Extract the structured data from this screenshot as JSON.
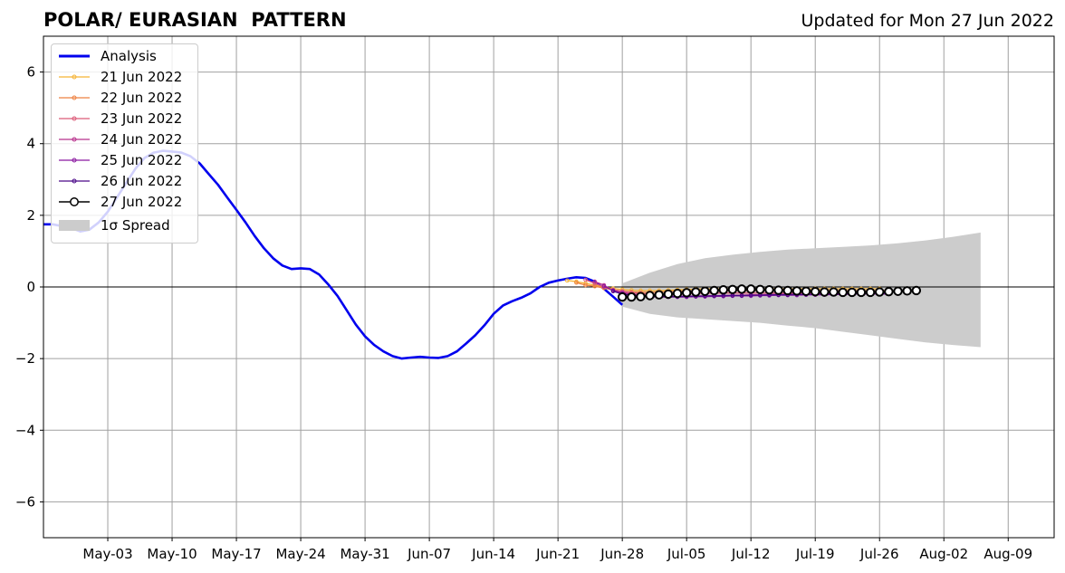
{
  "header": {
    "title": "POLAR/ EURASIAN  PATTERN",
    "updated": "Updated for Mon 27 Jun 2022"
  },
  "legend": {
    "items": [
      {
        "label": "Analysis",
        "color": "#0000ee",
        "kind": "thick-line"
      },
      {
        "label": "21 Jun 2022",
        "color": "#f5b335",
        "kind": "line-dot"
      },
      {
        "label": "22 Jun 2022",
        "color": "#ee8040",
        "kind": "line-dot"
      },
      {
        "label": "23 Jun 2022",
        "color": "#dc5a78",
        "kind": "line-dot"
      },
      {
        "label": "24 Jun 2022",
        "color": "#b8308c",
        "kind": "line-dot"
      },
      {
        "label": "25 Jun 2022",
        "color": "#8a18a0",
        "kind": "line-dot"
      },
      {
        "label": "26 Jun 2022",
        "color": "#4a0888",
        "kind": "line-dot"
      },
      {
        "label": "27 Jun 2022",
        "color": "#000000",
        "kind": "line-circle"
      },
      {
        "label": "1σ Spread",
        "color": "#cccccc",
        "kind": "patch"
      }
    ]
  },
  "chart_data": {
    "type": "line",
    "xlabel": "",
    "ylabel": "",
    "x_range": [
      "2022-04-26",
      "2022-08-14"
    ],
    "ylim": [
      -7,
      7
    ],
    "yticks": [
      -6,
      -4,
      -2,
      0,
      2,
      4,
      6
    ],
    "ytick_labels": [
      "−6",
      "−4",
      "−2",
      "0",
      "2",
      "4",
      "6"
    ],
    "xticks": [
      {
        "date": "2022-05-03",
        "label": "May-03"
      },
      {
        "date": "2022-05-10",
        "label": "May-10"
      },
      {
        "date": "2022-05-17",
        "label": "May-17"
      },
      {
        "date": "2022-05-24",
        "label": "May-24"
      },
      {
        "date": "2022-05-31",
        "label": "May-31"
      },
      {
        "date": "2022-06-07",
        "label": "Jun-07"
      },
      {
        "date": "2022-06-14",
        "label": "Jun-14"
      },
      {
        "date": "2022-06-21",
        "label": "Jun-21"
      },
      {
        "date": "2022-06-28",
        "label": "Jun-28"
      },
      {
        "date": "2022-07-05",
        "label": "Jul-05"
      },
      {
        "date": "2022-07-12",
        "label": "Jul-12"
      },
      {
        "date": "2022-07-19",
        "label": "Jul-19"
      },
      {
        "date": "2022-07-26",
        "label": "Jul-26"
      },
      {
        "date": "2022-08-02",
        "label": "Aug-02"
      },
      {
        "date": "2022-08-09",
        "label": "Aug-09"
      }
    ],
    "grid": true,
    "legend_position": "upper-left",
    "analysis": {
      "name": "Analysis",
      "start": "2022-04-26",
      "values": [
        1.75,
        1.75,
        1.7,
        1.65,
        1.55,
        1.6,
        1.8,
        2.1,
        2.5,
        2.9,
        3.3,
        3.6,
        3.75,
        3.8,
        3.78,
        3.75,
        3.65,
        3.45,
        3.15,
        2.85,
        2.5,
        2.15,
        1.8,
        1.42,
        1.08,
        0.8,
        0.6,
        0.5,
        0.52,
        0.5,
        0.35,
        0.07,
        -0.25,
        -0.65,
        -1.05,
        -1.38,
        -1.62,
        -1.8,
        -1.93,
        -2.0,
        -1.97,
        -1.95,
        -1.97,
        -1.98,
        -1.93,
        -1.8,
        -1.58,
        -1.35,
        -1.07,
        -0.75,
        -0.52,
        -0.4,
        -0.3,
        -0.18,
        0.0,
        0.12,
        0.18,
        0.23,
        0.27,
        0.25,
        0.15,
        -0.05,
        -0.27,
        -0.5
      ]
    },
    "spread": {
      "name": "1σ Spread",
      "start": "2022-06-28",
      "upper": [
        0.1,
        0.4,
        0.64,
        0.8,
        0.9,
        0.98,
        1.04,
        1.08,
        1.12,
        1.16,
        1.22,
        1.3,
        1.4,
        1.52
      ],
      "lower": [
        -0.55,
        -0.75,
        -0.85,
        -0.9,
        -0.95,
        -1.0,
        -1.08,
        -1.15,
        -1.25,
        -1.35,
        -1.45,
        -1.55,
        -1.62,
        -1.68
      ],
      "step_days": 3
    },
    "forecasts": [
      {
        "name": "21 Jun 2022",
        "start": "2022-06-22",
        "values": [
          0.18,
          0.15,
          0.1,
          0.05,
          0.0,
          -0.04,
          -0.07,
          -0.09,
          -0.1,
          -0.1,
          -0.1,
          -0.09,
          -0.08,
          -0.07,
          -0.06,
          -0.05,
          -0.05,
          -0.05,
          -0.05,
          -0.05,
          -0.05,
          -0.05,
          -0.05,
          -0.05,
          -0.05,
          -0.05,
          -0.05,
          -0.05,
          -0.05,
          -0.05,
          -0.05,
          -0.05,
          -0.05,
          -0.05,
          -0.05
        ]
      },
      {
        "name": "22 Jun 2022",
        "start": "2022-06-23",
        "values": [
          0.12,
          0.05,
          0.02,
          -0.03,
          -0.08,
          -0.12,
          -0.14,
          -0.15,
          -0.15,
          -0.14,
          -0.13,
          -0.12,
          -0.12,
          -0.11,
          -0.11,
          -0.1,
          -0.1,
          -0.1,
          -0.1,
          -0.1,
          -0.1,
          -0.1,
          -0.1,
          -0.1,
          -0.1,
          -0.1,
          -0.1,
          -0.1,
          -0.1,
          -0.1,
          -0.1,
          -0.1,
          -0.1,
          -0.1,
          -0.1
        ]
      },
      {
        "name": "23 Jun 2022",
        "start": "2022-06-24",
        "values": [
          0.2,
          0.1,
          0.0,
          -0.08,
          -0.12,
          -0.16,
          -0.18,
          -0.2,
          -0.2,
          -0.2,
          -0.2,
          -0.19,
          -0.18,
          -0.18,
          -0.17,
          -0.17,
          -0.17,
          -0.17,
          -0.17,
          -0.17,
          -0.17,
          -0.17,
          -0.17,
          -0.17,
          -0.17,
          -0.17,
          -0.17,
          -0.17,
          -0.17,
          -0.17,
          -0.17,
          -0.17,
          -0.17,
          -0.17
        ]
      },
      {
        "name": "24 Jun 2022",
        "start": "2022-06-25",
        "values": [
          0.15,
          0.05,
          -0.1,
          -0.15,
          -0.2,
          -0.22,
          -0.24,
          -0.25,
          -0.26,
          -0.26,
          -0.26,
          -0.25,
          -0.25,
          -0.24,
          -0.24,
          -0.23,
          -0.23,
          -0.22,
          -0.22,
          -0.21,
          -0.21,
          -0.2,
          -0.2,
          -0.2,
          -0.2,
          -0.2,
          -0.19,
          -0.19,
          -0.19,
          -0.19,
          -0.18,
          -0.18,
          -0.18
        ]
      },
      {
        "name": "25 Jun 2022",
        "start": "2022-06-26",
        "values": [
          0.02,
          -0.1,
          -0.18,
          -0.22,
          -0.25,
          -0.27,
          -0.28,
          -0.28,
          -0.28,
          -0.28,
          -0.27,
          -0.27,
          -0.26,
          -0.26,
          -0.25,
          -0.25,
          -0.25,
          -0.24,
          -0.24,
          -0.23,
          -0.23,
          -0.23,
          -0.22,
          -0.22,
          -0.22,
          -0.21,
          -0.21,
          -0.2,
          -0.2,
          -0.2,
          -0.2,
          -0.2
        ]
      },
      {
        "name": "26 Jun 2022",
        "start": "2022-06-27",
        "values": [
          -0.12,
          -0.2,
          -0.24,
          -0.26,
          -0.27,
          -0.27,
          -0.27,
          -0.27,
          -0.26,
          -0.26,
          -0.25,
          -0.25,
          -0.24,
          -0.24,
          -0.24,
          -0.23,
          -0.23,
          -0.22,
          -0.22,
          -0.22,
          -0.21,
          -0.21,
          -0.2,
          -0.2,
          -0.2,
          -0.19,
          -0.19,
          -0.19,
          -0.18,
          -0.18,
          -0.18
        ]
      },
      {
        "name": "27 Jun 2022",
        "start": "2022-06-28",
        "values": [
          -0.28,
          -0.28,
          -0.27,
          -0.24,
          -0.22,
          -0.2,
          -0.18,
          -0.16,
          -0.14,
          -0.12,
          -0.1,
          -0.08,
          -0.07,
          -0.06,
          -0.06,
          -0.07,
          -0.08,
          -0.09,
          -0.1,
          -0.11,
          -0.12,
          -0.13,
          -0.14,
          -0.14,
          -0.15,
          -0.15,
          -0.15,
          -0.15,
          -0.14,
          -0.13,
          -0.12,
          -0.11,
          -0.1
        ]
      }
    ]
  }
}
